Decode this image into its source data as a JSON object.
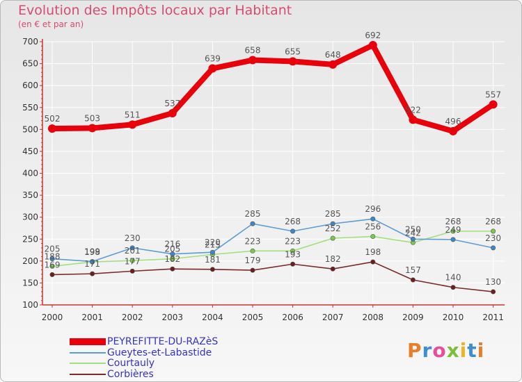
{
  "header": {
    "title": "Evolution des Impôts locaux par Habitant",
    "subtitle": "(en € et par an)"
  },
  "colors": {
    "title": "#d84b73",
    "axis": "#cc3333",
    "grid": "#ffffff",
    "tick_text": "#333333",
    "label_text": "#555555"
  },
  "chart_data": {
    "type": "line",
    "title": "Evolution des Impôts locaux par Habitant",
    "subtitle": "(en € et par an)",
    "xlabel": "",
    "ylabel": "",
    "x": [
      "2000",
      "2001",
      "2002",
      "2003",
      "2004",
      "2005",
      "2006",
      "2007",
      "2008",
      "2009",
      "2010",
      "2011"
    ],
    "ylim": [
      100,
      700
    ],
    "yticks": [
      100,
      150,
      200,
      250,
      300,
      350,
      400,
      450,
      500,
      550,
      600,
      650,
      700
    ],
    "grid": true,
    "legend_position": "bottom-left",
    "series": [
      {
        "name": "PEYREFITTE-DU-RAZèS",
        "values": [
          502,
          503,
          511,
          537,
          639,
          658,
          655,
          648,
          692,
          522,
          496,
          557
        ],
        "labels": [
          "502",
          "503",
          "511",
          "537",
          "639",
          "658",
          "655",
          "648",
          "692",
          "522",
          "496",
          "557"
        ],
        "color": "#e8000b",
        "fill": "#e8000b",
        "legend_color": "#3333cc"
      },
      {
        "name": "Gueytes-et-Labastide",
        "values": [
          205,
          199,
          230,
          216,
          220,
          285,
          268,
          285,
          296,
          250,
          249,
          230
        ],
        "labels": [
          "205",
          "199",
          "230",
          "216",
          "220",
          "285",
          "268",
          "285",
          "296",
          "250",
          "249",
          "230"
        ],
        "color": "#5c9bd4",
        "fill": "#3f86c8",
        "legend_color": "#3333cc"
      },
      {
        "name": "Courtauly",
        "values": [
          188,
          198,
          201,
          205,
          215,
          223,
          223,
          252,
          256,
          242,
          268,
          268
        ],
        "labels": [
          "188",
          "198",
          "201",
          "205",
          "215",
          "223",
          "223",
          "252",
          "256",
          "242",
          "268",
          "268"
        ],
        "color": "#a3df7e",
        "fill": "#7cc84a",
        "legend_color": "#3333cc"
      },
      {
        "name": "Corbières",
        "values": [
          169,
          171,
          177,
          182,
          181,
          179,
          193,
          182,
          198,
          157,
          140,
          130
        ],
        "labels": [
          "169",
          "171",
          "177",
          "182",
          "181",
          "179",
          "193",
          "182",
          "198",
          "157",
          "140",
          "130"
        ],
        "color": "#7a2a2a",
        "fill": "#6b1e1e",
        "legend_color": "#3333cc"
      }
    ]
  },
  "legend": {
    "items": [
      {
        "label": "PEYREFITTE-DU-RAZèS"
      },
      {
        "label": "Gueytes-et-Labastide"
      },
      {
        "label": "Courtauly"
      },
      {
        "label": "Corbières"
      }
    ]
  },
  "logo": {
    "text": "Proxiti",
    "letters": [
      "P",
      "r",
      "o",
      "x",
      "i",
      "t",
      "i"
    ],
    "colors": [
      "#e87d2a",
      "#3d8fd0",
      "#e84e9b",
      "#7cbf3a",
      "#f0b21e",
      "#3d8fd0",
      "#e87d2a"
    ]
  }
}
